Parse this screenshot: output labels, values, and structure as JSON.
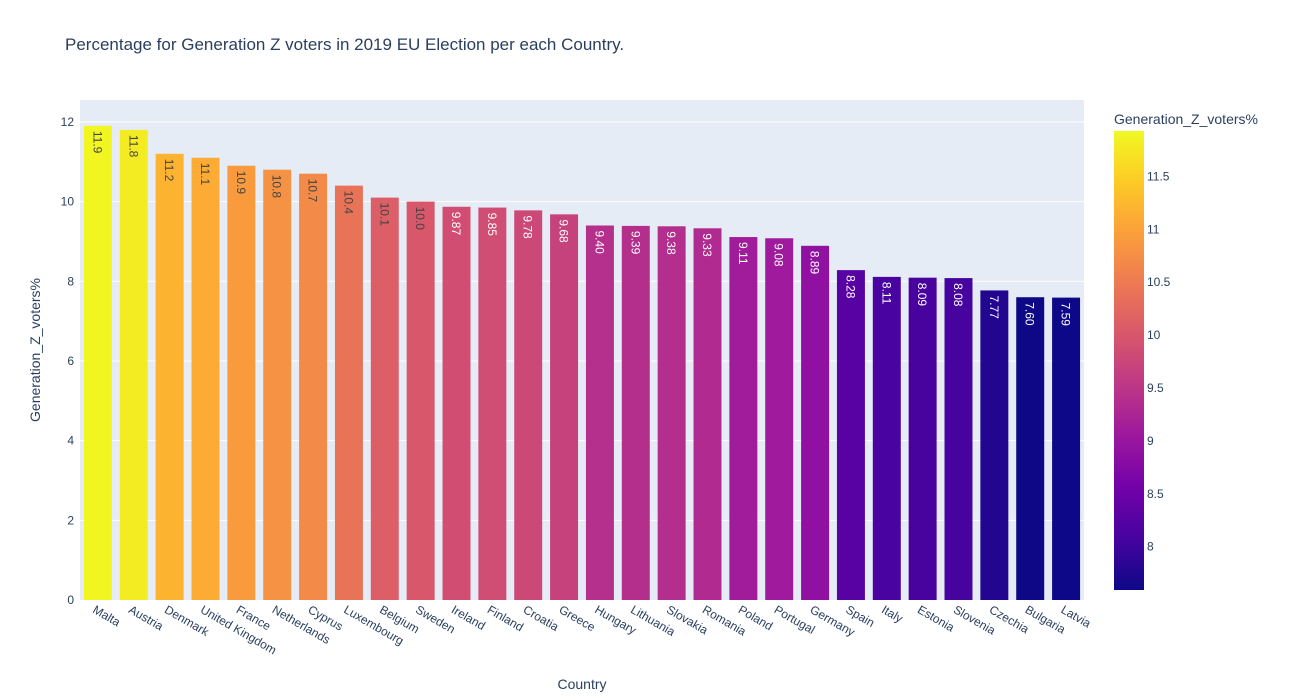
{
  "chart_data": {
    "type": "bar",
    "title": "Percentage for Generation Z voters in 2019 EU Election per each Country.",
    "xlabel": "Country",
    "ylabel": "Generation_Z_voters%",
    "ylim": [
      0,
      12.55
    ],
    "yticks": [
      0,
      2,
      4,
      6,
      8,
      10,
      12
    ],
    "categories": [
      "Malta",
      "Austria",
      "Denmark",
      "United Kingdom",
      "France",
      "Netherlands",
      "Cyprus",
      "Luxembourg",
      "Belgium",
      "Sweden",
      "Ireland",
      "Finland",
      "Croatia",
      "Greece",
      "Hungary",
      "Lithuania",
      "Slovakia",
      "Romania",
      "Poland",
      "Portugal",
      "Germany",
      "Spain",
      "Italy",
      "Estonia",
      "Slovenia",
      "Czechia",
      "Bulgaria",
      "Latvia"
    ],
    "values": [
      11.9,
      11.8,
      11.2,
      11.1,
      10.9,
      10.8,
      10.7,
      10.4,
      10.1,
      10.0,
      9.87,
      9.85,
      9.78,
      9.68,
      9.4,
      9.39,
      9.38,
      9.33,
      9.11,
      9.08,
      8.89,
      8.28,
      8.11,
      8.09,
      8.08,
      7.77,
      7.6,
      7.59
    ],
    "labels": [
      "11.9",
      "11.8",
      "11.2",
      "11.1",
      "10.9",
      "10.8",
      "10.7",
      "10.4",
      "10.1",
      "10.0",
      "9.87",
      "9.85",
      "9.78",
      "9.68",
      "9.40",
      "9.39",
      "9.38",
      "9.33",
      "9.11",
      "9.08",
      "8.89",
      "8.28",
      "8.11",
      "8.09",
      "8.08",
      "7.77",
      "7.60",
      "7.59"
    ],
    "colorbar": {
      "title": "Generation_Z_voters%",
      "range": [
        7.59,
        11.93
      ],
      "ticks": [
        "8",
        "8.5",
        "9",
        "9.5",
        "10",
        "10.5",
        "11",
        "11.5"
      ],
      "tick_values": [
        8,
        8.5,
        9,
        9.5,
        10,
        10.5,
        11,
        11.5
      ],
      "colorscale": [
        "#0d0887",
        "#46039f",
        "#7201a8",
        "#9c179e",
        "#bd3786",
        "#d8576b",
        "#ed7953",
        "#fb9f3a",
        "#fdca26",
        "#f0f921"
      ]
    },
    "grid": true,
    "plot_background": "#e5ecf6",
    "axis_text_color": "#2a3f5f",
    "label_color_dark": "#444444",
    "label_color_light": "#ffffff"
  }
}
